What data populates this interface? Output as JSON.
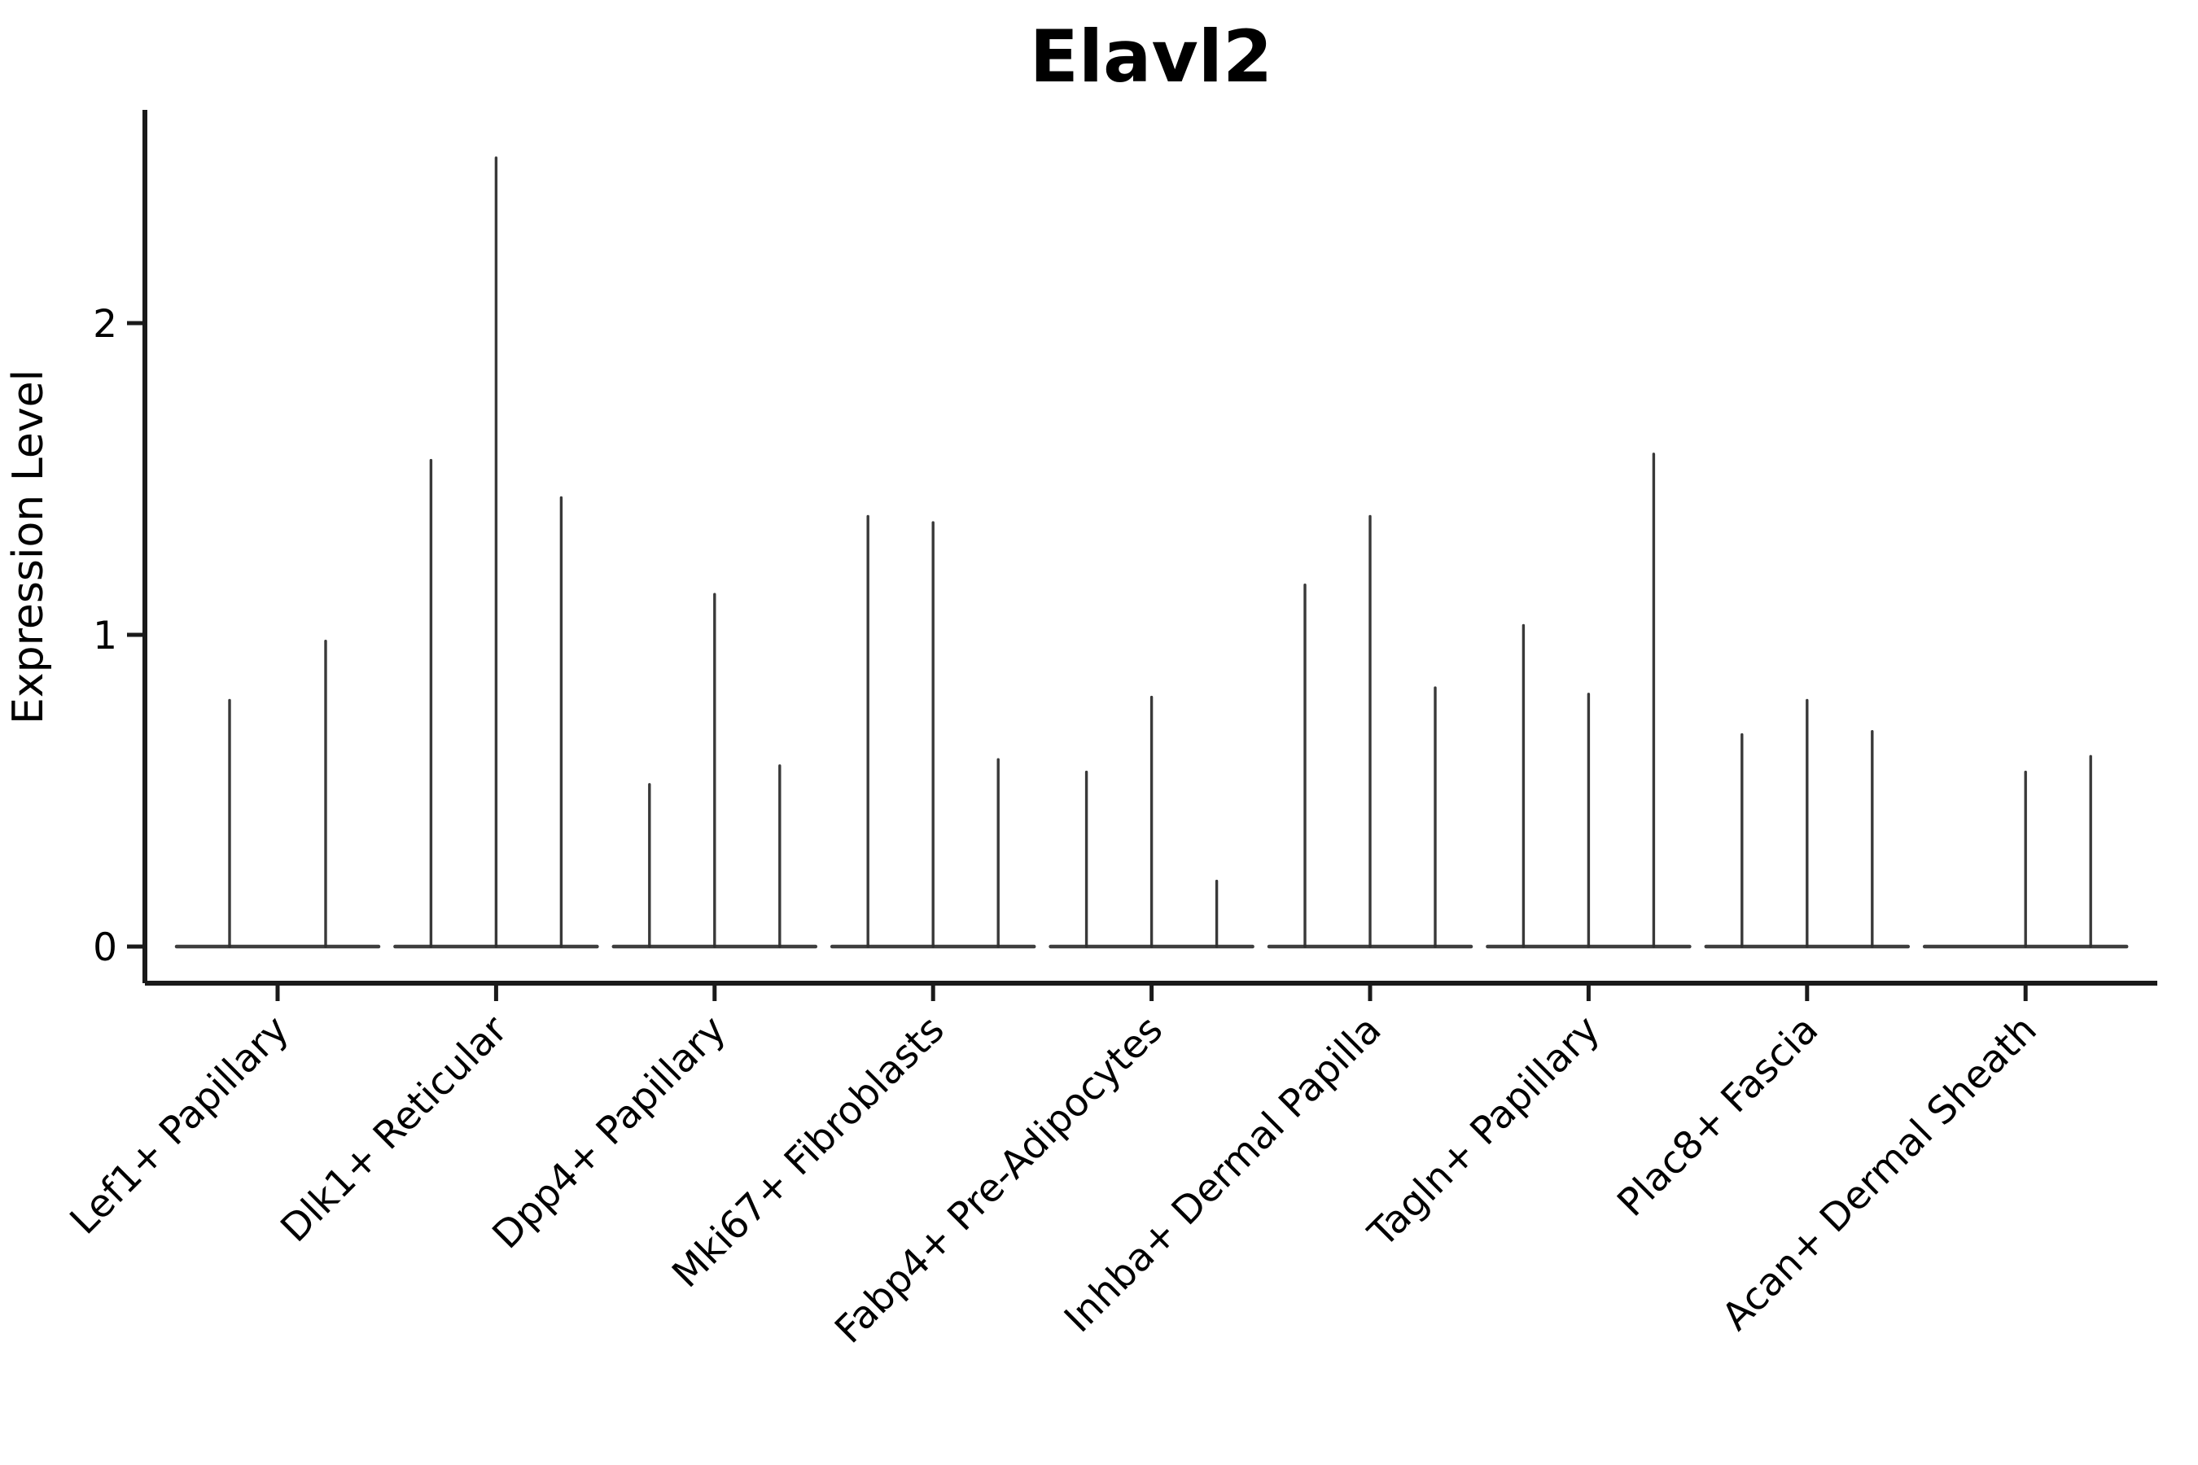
{
  "chart_data": {
    "type": "violin",
    "title": "Elavl2",
    "ylabel": "Expression Level",
    "xlabel": "",
    "yticks": [
      0,
      1,
      2
    ],
    "ylim": [
      -0.12,
      2.68
    ],
    "grid": false,
    "legend": "none",
    "background_color": "#ffffff",
    "line_color": "#2e2e2e",
    "axis_color": "#1a1a1a",
    "text_color": "#000000",
    "x_label_rotation_deg": 45,
    "categories": [
      {
        "label": "Lef1+ Papillary",
        "violins": [
          {
            "offset": -59,
            "peak": 0.79
          },
          {
            "offset": 59,
            "peak": 0.98
          }
        ]
      },
      {
        "label": "Dlk1+ Reticular",
        "violins": [
          {
            "offset": -80,
            "peak": 1.56
          },
          {
            "offset": 0,
            "peak": 2.53
          },
          {
            "offset": 80,
            "peak": 1.44
          }
        ]
      },
      {
        "label": "Dpp4+ Papillary",
        "violins": [
          {
            "offset": -80,
            "peak": 0.52
          },
          {
            "offset": 0,
            "peak": 1.13
          },
          {
            "offset": 80,
            "peak": 0.58
          }
        ]
      },
      {
        "label": "Mki67+ Fibroblasts",
        "violins": [
          {
            "offset": -80,
            "peak": 1.38
          },
          {
            "offset": 0,
            "peak": 1.36
          },
          {
            "offset": 80,
            "peak": 0.6
          }
        ]
      },
      {
        "label": "Fabp4+ Pre-Adipocytes",
        "violins": [
          {
            "offset": -80,
            "peak": 0.56
          },
          {
            "offset": 0,
            "peak": 0.8
          },
          {
            "offset": 80,
            "peak": 0.21
          }
        ]
      },
      {
        "label": "Inhba+ Dermal Papilla",
        "violins": [
          {
            "offset": -80,
            "peak": 1.16
          },
          {
            "offset": 0,
            "peak": 1.38
          },
          {
            "offset": 80,
            "peak": 0.83
          }
        ]
      },
      {
        "label": "Tagln+ Papillary",
        "violins": [
          {
            "offset": -80,
            "peak": 1.03
          },
          {
            "offset": 0,
            "peak": 0.81
          },
          {
            "offset": 80,
            "peak": 1.58
          }
        ]
      },
      {
        "label": "Plac8+ Fascia",
        "violins": [
          {
            "offset": -80,
            "peak": 0.68
          },
          {
            "offset": 0,
            "peak": 0.79
          },
          {
            "offset": 80,
            "peak": 0.69
          }
        ]
      },
      {
        "label": "Acan+ Dermal Sheath",
        "violins": [
          {
            "offset": 0,
            "peak": 0.56
          },
          {
            "offset": 80,
            "peak": 0.61
          }
        ]
      }
    ]
  }
}
